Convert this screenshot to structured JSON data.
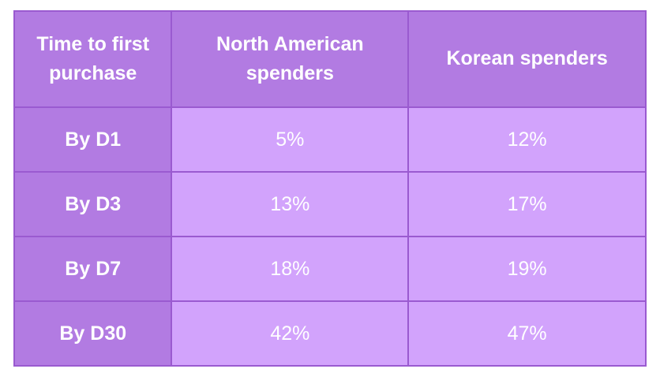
{
  "chart_data": {
    "type": "table",
    "columns": [
      "Time to first purchase",
      "North American spenders",
      "Korean spenders"
    ],
    "rows": [
      {
        "label": "By D1",
        "values": [
          "5%",
          "12%"
        ]
      },
      {
        "label": "By D3",
        "values": [
          "13%",
          "17%"
        ]
      },
      {
        "label": "By D7",
        "values": [
          "18%",
          "19%"
        ]
      },
      {
        "label": "By D30",
        "values": [
          "42%",
          "47%"
        ]
      }
    ]
  },
  "colors": {
    "header_bg": "#b27be2",
    "cell_bg": "#d2a3fc",
    "border": "#9a5ad0",
    "text": "#ffffff"
  }
}
